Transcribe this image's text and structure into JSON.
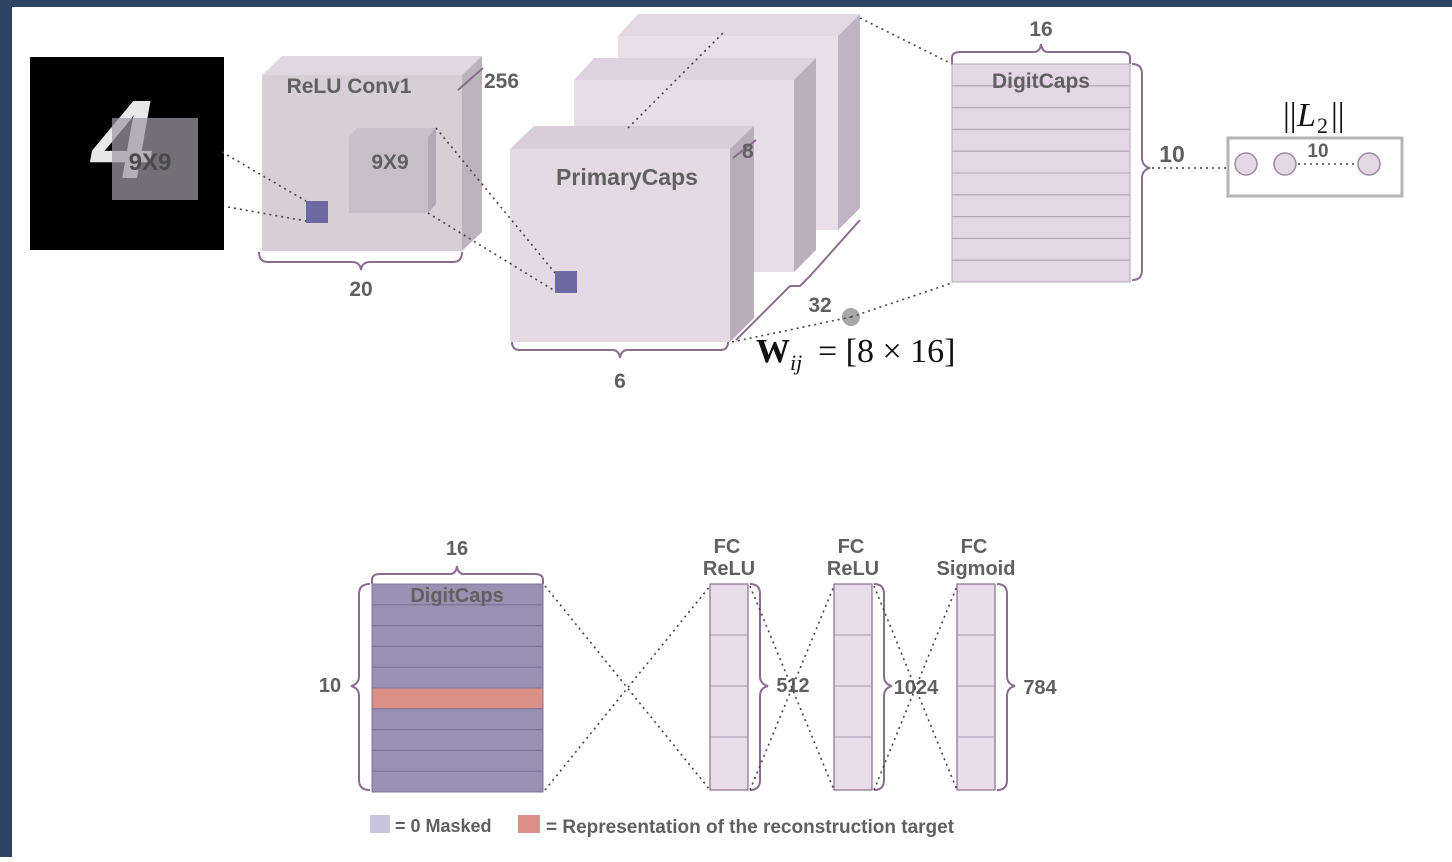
{
  "colors": {
    "frame": "#2e4465",
    "box_face": "#e6dde6",
    "box_top": "#d9cfdb",
    "box_side": "#b9acbb",
    "kernel": "#6d6aa3",
    "masked": "#9a90b2",
    "target": "#dc8f87",
    "brace": "#8a6d8f",
    "text": "#606060"
  },
  "input": {
    "digit": "4",
    "kernel_label": "9X9"
  },
  "conv1": {
    "title": "ReLU Conv1",
    "kernel_label": "9X9",
    "depth_label": "256",
    "width_label": "20"
  },
  "primary": {
    "title": "PrimaryCaps",
    "depth_label": "8",
    "width_label": "6",
    "count_label": "32"
  },
  "weights": {
    "symbol": "W",
    "subscript": "ij",
    "expression": "= [8 × 16]"
  },
  "digitcaps_top": {
    "title": "DigitCaps",
    "width_label": "16",
    "height_label": "10",
    "rows": 10
  },
  "l2": {
    "prefix": "||",
    "symbol": "L",
    "subscript": "2",
    "suffix": "||",
    "count_label": "10"
  },
  "decoder": {
    "digitcaps_title": "DigitCaps",
    "width_label": "16",
    "height_label": "10",
    "target_row": 5,
    "layers": [
      {
        "line1": "FC",
        "line2": "ReLU",
        "size": "512"
      },
      {
        "line1": "FC",
        "line2": "ReLU",
        "size": "1024"
      },
      {
        "line1": "FC",
        "line2": "Sigmoid",
        "size": "784"
      }
    ]
  },
  "legend": {
    "masked_label": "= 0 Masked",
    "target_label": "= Representation of the reconstruction target"
  }
}
